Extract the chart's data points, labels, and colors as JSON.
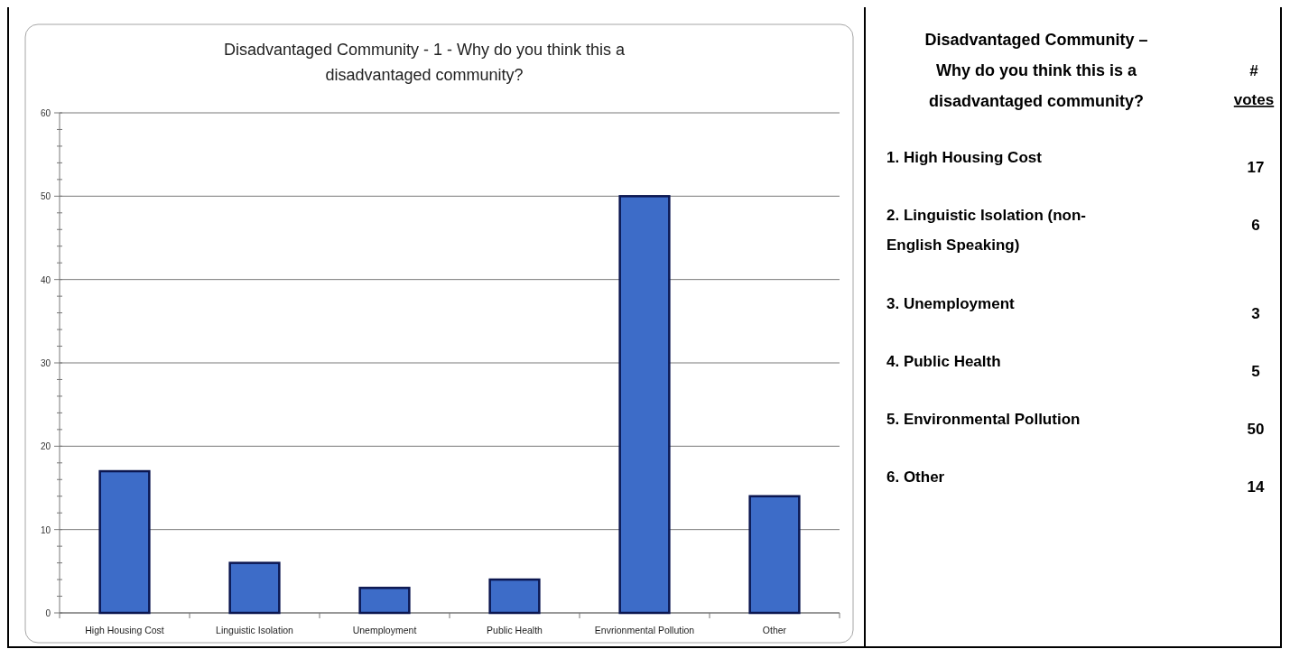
{
  "chart_data": [
    {
      "type": "bar",
      "title": "Disadvantaged Community - 1 - Why do you think this a disadvantaged community?",
      "categories": [
        "High Housing Cost",
        "Linguistic Isolation",
        "Unemployment",
        "Public Health",
        "Envrionmental Pollution",
        "Other"
      ],
      "values": [
        17,
        6,
        3,
        4,
        50,
        14
      ],
      "color": "#3d6cc8",
      "ylim": [
        0,
        60
      ],
      "yticks": [
        0,
        {
          "value": 2,
          "label": null
        },
        {
          "value": 4,
          "label": null
        },
        {
          "value": 6,
          "label": null
        },
        {
          "value": 8,
          "label": null
        },
        10,
        {
          "value": 12,
          "label": null
        },
        {
          "value": 14,
          "label": null
        },
        {
          "value": 16,
          "label": null
        },
        {
          "value": 18,
          "label": null
        },
        20,
        {
          "value": 22,
          "label": null
        },
        {
          "value": 24,
          "label": null
        },
        {
          "value": 26,
          "label": null
        },
        {
          "value": 28,
          "label": null
        },
        30,
        {
          "value": 32,
          "label": null
        },
        {
          "value": 34,
          "label": null
        },
        {
          "value": 36,
          "label": null
        },
        {
          "value": 38,
          "label": null
        },
        40,
        {
          "value": 42,
          "label": null
        },
        {
          "value": 44,
          "label": null
        },
        {
          "value": 46,
          "label": null
        },
        {
          "value": 48,
          "label": null
        },
        50,
        {
          "value": 52,
          "label": null
        },
        {
          "value": 54,
          "label": null
        },
        {
          "value": 56,
          "label": null
        },
        {
          "value": 58,
          "label": null
        },
        60
      ],
      "grid": "y"
    },
    {
      "type": "other",
      "title": "Disadvantaged Community – Why do you think this is a disadvantaged community?",
      "legend_title": "# votes",
      "categories": [
        "1. High Housing Cost",
        "2. Linguistic Isolation (non-English Speaking)",
        "3. Unemployment",
        "4. Public Health",
        "5. Environmental Pollution",
        "6. Other"
      ],
      "values": [
        17,
        6,
        3,
        5,
        50,
        14
      ],
      "data_labels": true
    }
  ]
}
